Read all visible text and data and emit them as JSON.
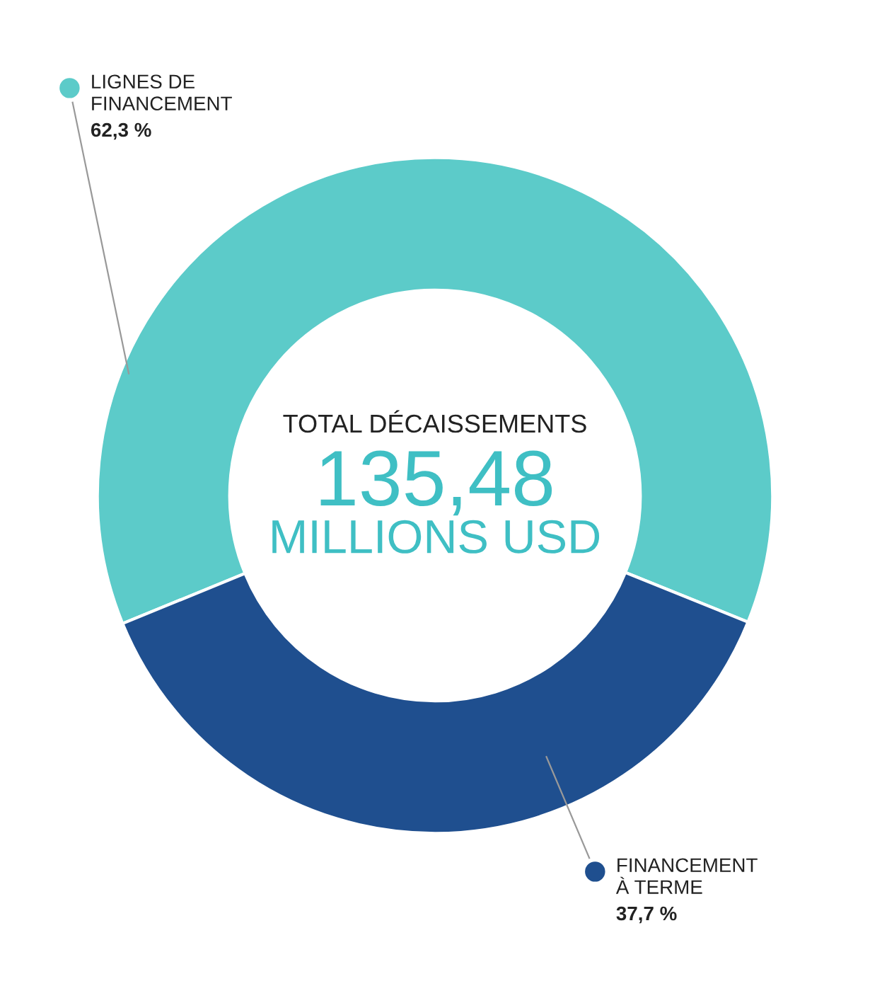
{
  "chart_data": {
    "type": "donut",
    "categories": [
      "LIGNES DE\nFINANCEMENT",
      "FINANCEMENT\nÀ TERME"
    ],
    "values": [
      62.3,
      37.7
    ],
    "value_labels": [
      "62,3 %",
      "37,7 %"
    ],
    "colors": [
      "#5ccbc9",
      "#1f4f8f"
    ],
    "annotations": [
      "TOTAL DÉCAISSEMENTS",
      "135,48",
      "MILLIONS USD"
    ],
    "legend": "top left"
  }
}
